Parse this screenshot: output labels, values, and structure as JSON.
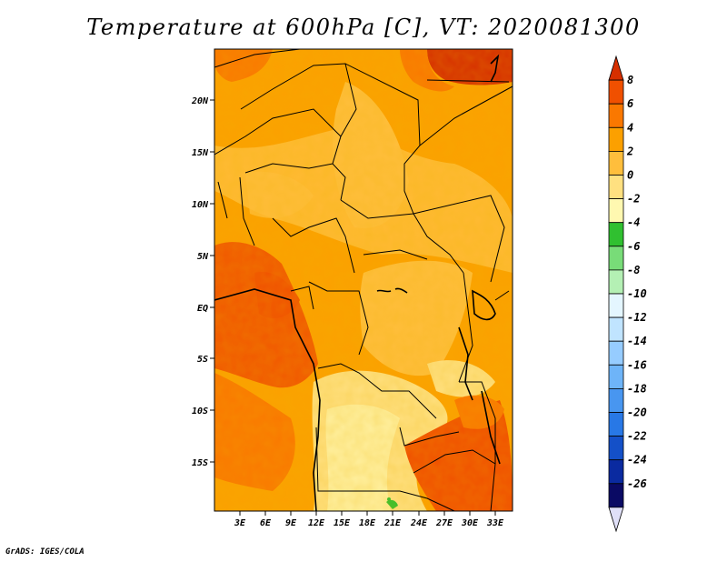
{
  "title": "Temperature at 600hPa [C], VT: 2020081300",
  "credit": "GrADS: IGES/COLA",
  "map": {
    "lon_labels": [
      "3E",
      "6E",
      "9E",
      "12E",
      "15E",
      "18E",
      "21E",
      "24E",
      "27E",
      "30E",
      "33E"
    ],
    "lat_labels": [
      "20N",
      "15N",
      "10N",
      "5N",
      "EQ",
      "5S",
      "10S",
      "15S"
    ]
  },
  "colorbar": {
    "labels": [
      "8",
      "6",
      "4",
      "2",
      "0",
      "-2",
      "-4",
      "-6",
      "-8",
      "-10",
      "-12",
      "-14",
      "-16",
      "-18",
      "-20",
      "-22",
      "-24",
      "-26"
    ],
    "colors": [
      "#d62f00",
      "#f05000",
      "#fa7800",
      "#fca000",
      "#ffbe3c",
      "#ffe080",
      "#fff8b0",
      "#30c030",
      "#78dc78",
      "#b4f0b4",
      "#e4f6ff",
      "#c0e4ff",
      "#96ccff",
      "#6eb4f8",
      "#4896f0",
      "#2878e6",
      "#1450c8",
      "#0a2aa0",
      "#0a0a64",
      "#e0e0f8"
    ]
  }
}
